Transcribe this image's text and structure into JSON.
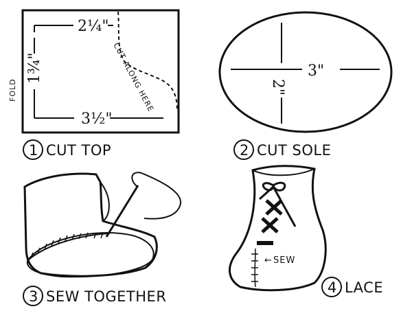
{
  "panel1": {
    "top_dim": "2¼\"",
    "side_dim": "1¾\"",
    "bottom_dim": "3½\"",
    "fold_label": "FOLD",
    "cut_note": "CUT ALONG HERE",
    "step_number": "1",
    "step_label": "CUT TOP"
  },
  "panel2": {
    "length_dim": "3\"",
    "width_dim": "2\"",
    "step_number": "2",
    "step_label": "CUT SOLE"
  },
  "panel3": {
    "step_number": "3",
    "step_label": "SEW TOGETHER"
  },
  "panel4": {
    "sew_note": "SEW",
    "step_number": "4",
    "step_label": "LACE"
  }
}
